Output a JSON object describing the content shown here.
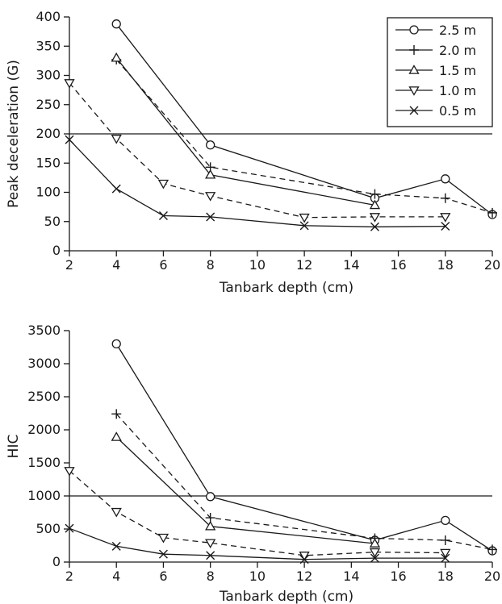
{
  "chart_data": [
    {
      "type": "line",
      "xlabel": "Tanbark depth (cm)",
      "ylabel": "Peak deceleration (G)",
      "xlim": [
        2,
        20
      ],
      "ylim": [
        0,
        400
      ],
      "xticks": [
        2,
        4,
        6,
        8,
        10,
        12,
        14,
        16,
        18,
        20
      ],
      "yticks": [
        0,
        50,
        100,
        150,
        200,
        250,
        300,
        350,
        400
      ],
      "xtick_labels": [
        "2",
        "4",
        "6",
        "8",
        "10",
        "12",
        "14",
        "16",
        "18",
        "20"
      ],
      "ytick_labels": [
        "0",
        "50",
        "100",
        "150",
        "200",
        "250",
        "300",
        "350",
        "400"
      ],
      "reference_line": 200,
      "grid": false,
      "legend_position": "top-right",
      "series": [
        {
          "name": "2.5 m",
          "marker": "circle",
          "dash": "solid",
          "points": [
            [
              4,
              388
            ],
            [
              8,
              181
            ],
            [
              15,
              90
            ],
            [
              18,
              123
            ],
            [
              20,
              62
            ]
          ]
        },
        {
          "name": "2.0 m",
          "marker": "plus",
          "dash": "dashed",
          "points": [
            [
              4,
              327
            ],
            [
              8,
              143
            ],
            [
              15,
              97
            ],
            [
              18,
              90
            ],
            [
              20,
              65
            ]
          ]
        },
        {
          "name": "1.5 m",
          "marker": "triangle-up",
          "dash": "solid",
          "points": [
            [
              4,
              330
            ],
            [
              8,
              130
            ],
            [
              15,
              78
            ]
          ]
        },
        {
          "name": "1.0 m",
          "marker": "triangle-down",
          "dash": "dashed",
          "points": [
            [
              2,
              287
            ],
            [
              4,
              192
            ],
            [
              6,
              115
            ],
            [
              8,
              94
            ],
            [
              12,
              57
            ],
            [
              15,
              58
            ],
            [
              18,
              58
            ]
          ]
        },
        {
          "name": "0.5 m",
          "marker": "x",
          "dash": "solid",
          "points": [
            [
              2,
              190
            ],
            [
              4,
              106
            ],
            [
              6,
              60
            ],
            [
              8,
              58
            ],
            [
              12,
              43
            ],
            [
              15,
              41
            ],
            [
              18,
              42
            ]
          ]
        }
      ]
    },
    {
      "type": "line",
      "xlabel": "Tanbark depth (cm)",
      "ylabel": "HIC",
      "xlim": [
        2,
        20
      ],
      "ylim": [
        0,
        3500
      ],
      "xticks": [
        2,
        4,
        6,
        8,
        10,
        12,
        14,
        16,
        18,
        20
      ],
      "yticks": [
        0,
        500,
        1000,
        1500,
        2000,
        2500,
        3000,
        3500
      ],
      "xtick_labels": [
        "2",
        "4",
        "6",
        "8",
        "10",
        "12",
        "14",
        "16",
        "18",
        "20"
      ],
      "ytick_labels": [
        "0",
        "500",
        "1000",
        "1500",
        "2000",
        "2500",
        "3000",
        "3500"
      ],
      "reference_line": 1000,
      "grid": false,
      "legend_position": "none",
      "series": [
        {
          "name": "2.5 m",
          "marker": "circle",
          "dash": "solid",
          "points": [
            [
              4,
              3300
            ],
            [
              8,
              990
            ],
            [
              15,
              330
            ],
            [
              18,
              630
            ],
            [
              20,
              170
            ]
          ]
        },
        {
          "name": "2.0 m",
          "marker": "plus",
          "dash": "dashed",
          "points": [
            [
              4,
              2240
            ],
            [
              8,
              670
            ],
            [
              15,
              360
            ],
            [
              18,
              330
            ],
            [
              20,
              190
            ]
          ]
        },
        {
          "name": "1.5 m",
          "marker": "triangle-up",
          "dash": "solid",
          "points": [
            [
              4,
              1890
            ],
            [
              8,
              540
            ],
            [
              15,
              280
            ]
          ]
        },
        {
          "name": "1.0 m",
          "marker": "triangle-down",
          "dash": "dashed",
          "points": [
            [
              2,
              1380
            ],
            [
              4,
              760
            ],
            [
              6,
              370
            ],
            [
              8,
              290
            ],
            [
              12,
              100
            ],
            [
              15,
              150
            ],
            [
              18,
              140
            ]
          ]
        },
        {
          "name": "0.5 m",
          "marker": "x",
          "dash": "solid",
          "points": [
            [
              2,
              510
            ],
            [
              4,
              240
            ],
            [
              6,
              120
            ],
            [
              8,
              100
            ],
            [
              12,
              40
            ],
            [
              15,
              60
            ],
            [
              18,
              60
            ]
          ]
        }
      ]
    }
  ]
}
